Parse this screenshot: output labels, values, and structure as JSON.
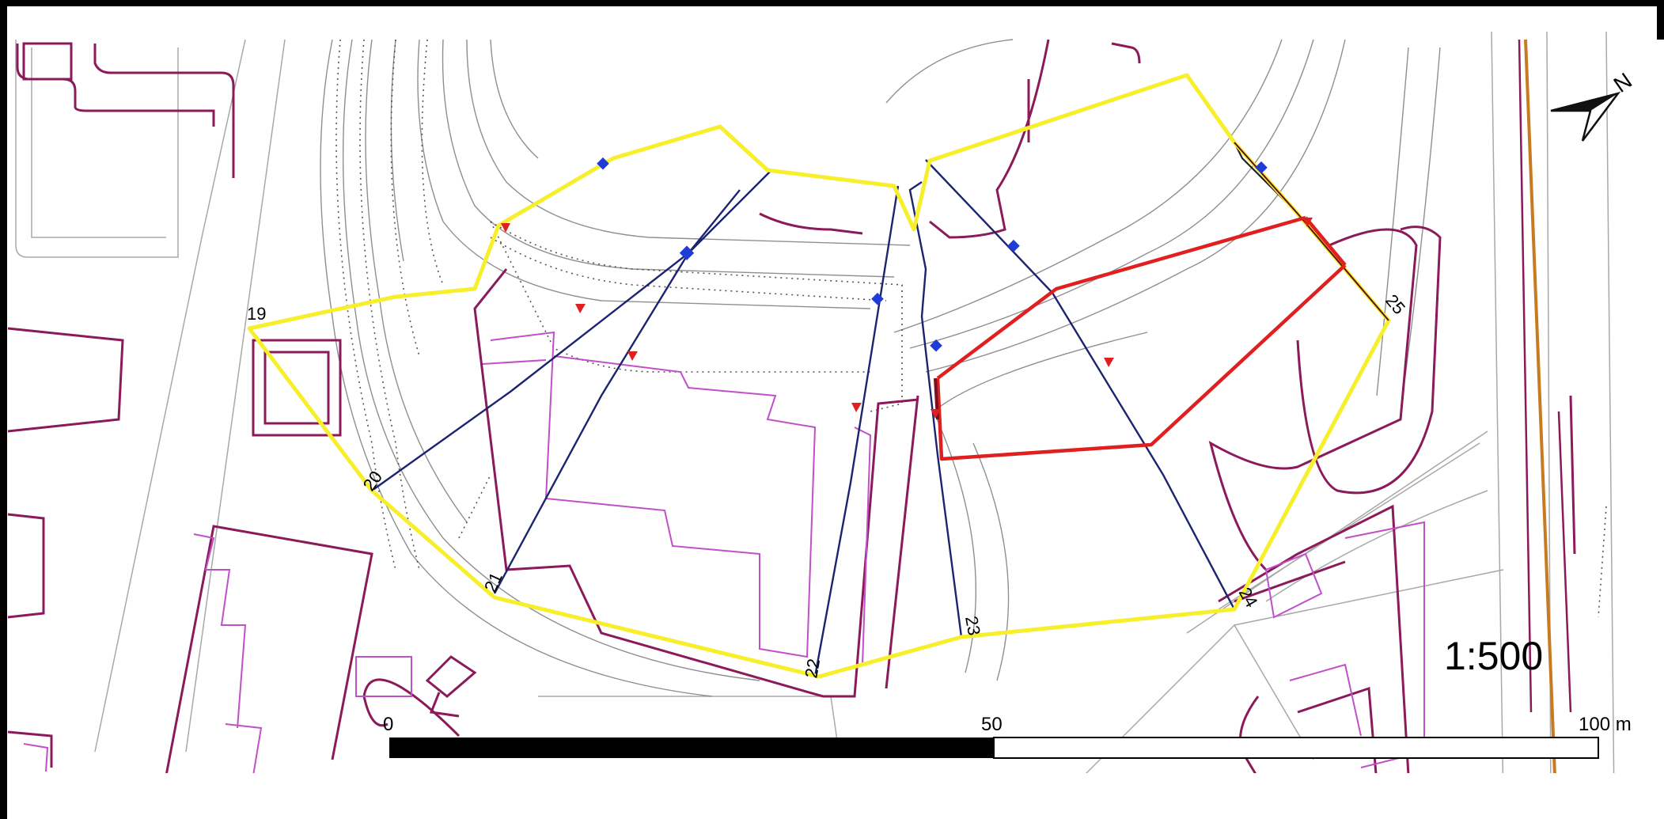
{
  "map": {
    "scale_ratio": "1:500",
    "north_label": "N",
    "scale_bar": {
      "start": "0",
      "mid": "50",
      "end": "100 m"
    },
    "point_labels": [
      "19",
      "20",
      "21",
      "22",
      "23",
      "24",
      "25"
    ],
    "colors": {
      "outline": "#f7ef2b",
      "section_line": "#1c2470",
      "red_route": "#e02020",
      "building": "#8b1a5a",
      "building_thin": "#c050c8",
      "contour": "#9a9a9a",
      "road": "#c87a20",
      "blue_marker": "#1f3cd8",
      "red_marker": "#e02020"
    }
  }
}
